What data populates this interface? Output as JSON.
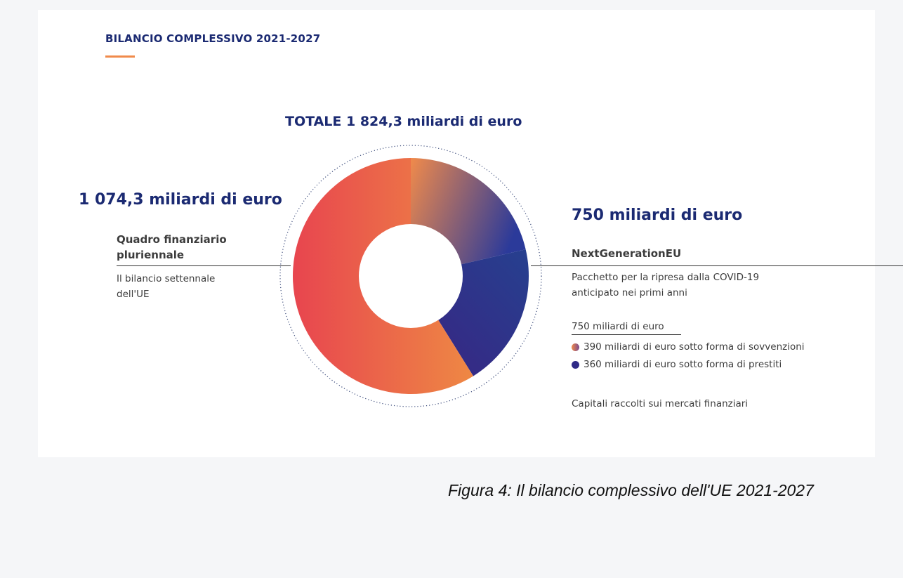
{
  "title": "BILANCIO COMPLESSIVO 2021-2027",
  "colors": {
    "navy": "#1b2a72",
    "accent": "#f08a4b",
    "mff_start": "#ee8844",
    "mff_end": "#e8454f",
    "grant_start": "#f08a4b",
    "grant_end": "#2b3a9a",
    "loan_start": "#3a2382",
    "loan_end": "#26408f"
  },
  "total_label": "TOTALE 1 824,3 miliardi di euro",
  "left": {
    "amount": "1 074,3 miliardi di euro",
    "name_line1": "Quadro finanziario",
    "name_line2": "pluriennale",
    "desc_line1": "Il bilancio settennale",
    "desc_line2": "dell'UE"
  },
  "right": {
    "amount": "750 miliardi di euro",
    "name": "NextGenerationEU",
    "desc_line1": "Pacchetto per la ripresa dalla COVID-19",
    "desc_line2": "anticipato nei primi anni",
    "sub_total": "750 miliardi di euro",
    "legend_grant": "390 miliardi di euro sotto forma di sovvenzioni",
    "legend_loan": "360 miliardi di euro sotto forma di prestiti",
    "footnote": "Capitali raccolti sui mercati finanziari"
  },
  "caption": "Figura 4: Il bilancio complessivo dell'UE 2021-2027",
  "chart_data": {
    "type": "pie",
    "title": "BILANCIO COMPLESSIVO 2021-2027",
    "unit": "miliardi di euro",
    "total": 1824.3,
    "categories": [
      "Quadro finanziario pluriennale",
      "NextGenerationEU - sovvenzioni",
      "NextGenerationEU - prestiti"
    ],
    "values": [
      1074.3,
      390,
      360
    ]
  }
}
